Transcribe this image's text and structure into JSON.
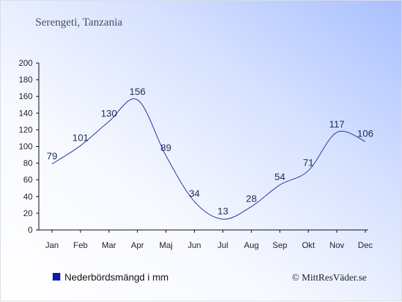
{
  "chart_data": {
    "type": "line",
    "title": "Serengeti, Tanzania",
    "categories": [
      "Jan",
      "Feb",
      "Mar",
      "Apr",
      "Maj",
      "Jun",
      "Jul",
      "Aug",
      "Sep",
      "Okt",
      "Nov",
      "Dec"
    ],
    "series": [
      {
        "name": "Nederbördsmängd i mm",
        "values": [
          79,
          101,
          130,
          156,
          89,
          34,
          13,
          28,
          54,
          71,
          117,
          106
        ]
      }
    ],
    "ylim": [
      0,
      200
    ],
    "yticks": [
      0,
      20,
      40,
      60,
      80,
      100,
      120,
      140,
      160,
      180,
      200
    ],
    "grid": false,
    "legend_position": "bottom-left",
    "line_color": "#1f2e9e",
    "legend_marker_color": "#0d1fa6"
  },
  "credit": "© MittResVäder.se"
}
